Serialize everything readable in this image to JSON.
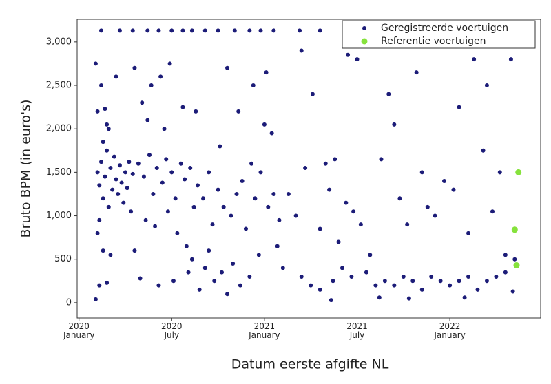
{
  "chart_data": {
    "type": "scatter",
    "xlabel": "Datum eerste afgifte NL",
    "ylabel": "Bruto BPM (in euro's)",
    "xlim": [
      2019.99,
      2022.49
    ],
    "ylim": [
      -175,
      3260
    ],
    "xticks": [
      {
        "value": 2020,
        "label": "2020\nJanuary"
      },
      {
        "value": 2020.5,
        "label": "2020\nJuly"
      },
      {
        "value": 2021,
        "label": "2021\nJanuary"
      },
      {
        "value": 2021.5,
        "label": "2021\nJuly"
      },
      {
        "value": 2022,
        "label": "2022\nJanuary"
      }
    ],
    "yticks": [
      0,
      500,
      {
        "value": 1000,
        "label": "1,000"
      },
      {
        "value": 1500,
        "label": "1,500"
      },
      {
        "value": 2000,
        "label": "2,000"
      },
      {
        "value": 2500,
        "label": "2,500"
      },
      {
        "value": 3000,
        "label": "3,000"
      }
    ],
    "grid": false,
    "legend": "upper right",
    "series": [
      {
        "name": "Geregistreerde voertuigen",
        "color": "#1c1c78",
        "x": [
          2020.1,
          2020.11,
          2020.12,
          2020.13,
          2020.14,
          2020.15,
          2020.16,
          2020.17,
          2020.18,
          2020.19,
          2020.2,
          2020.21,
          2020.22,
          2020.23,
          2020.24,
          2020.25,
          2020.26,
          2020.27,
          2020.28,
          2020.29,
          2020.11,
          2020.13,
          2020.15,
          2020.1,
          2020.12,
          2020.14,
          2020.09,
          2020.16,
          2020.2,
          2020.1,
          2020.13,
          2020.17,
          2020.11,
          2020.09,
          2020.15,
          2020.32,
          2020.35,
          2020.38,
          2020.4,
          2020.42,
          2020.45,
          2020.47,
          2020.5,
          2020.52,
          2020.55,
          2020.57,
          2020.6,
          2020.62,
          2020.64,
          2020.36,
          2020.41,
          2020.48,
          2020.53,
          2020.58,
          2020.61,
          2020.3,
          2020.34,
          2020.39,
          2020.44,
          2020.49,
          2020.37,
          2020.46,
          2020.56,
          2020.63,
          2020.33,
          2020.43,
          2020.51,
          2020.59,
          2020.3,
          2020.65,
          2020.67,
          2020.7,
          2020.72,
          2020.75,
          2020.78,
          2020.8,
          2020.82,
          2020.85,
          2020.88,
          2020.9,
          2020.93,
          2020.95,
          2020.98,
          2021.02,
          2021.05,
          2021.08,
          2020.68,
          2020.73,
          2020.77,
          2020.83,
          2020.87,
          2020.92,
          2020.97,
          2021,
          2021.01,
          2021.04,
          2020.76,
          2020.86,
          2020.94,
          2021.07,
          2021.1,
          2020.7,
          2020.8,
          2021.13,
          2021.17,
          2021.2,
          2021.22,
          2021.26,
          2021.3,
          2021.33,
          2021.35,
          2021.38,
          2021.4,
          2021.44,
          2021.48,
          2021.52,
          2021.57,
          2021.2,
          2021.25,
          2021.3,
          2021.37,
          2021.42,
          2021.47,
          2021.55,
          2021.6,
          2021.36,
          2021.5,
          2021.45,
          2021.63,
          2021.67,
          2021.7,
          2021.73,
          2021.77,
          2021.82,
          2021.85,
          2021.88,
          2021.92,
          2021.97,
          2022.02,
          2022.05,
          2022.1,
          2022.13,
          2022.18,
          2022.2,
          2022.23,
          2022.27,
          2022.3,
          2022.33,
          2022.35,
          2021.65,
          2021.7,
          2021.75,
          2021.8,
          2021.85,
          2021.9,
          2021.95,
          2022,
          2022.05,
          2022.1,
          2022.15,
          2022.2,
          2022.25,
          2022.3,
          2022.34,
          2021.78,
          2021.62,
          2022.08,
          2020.12,
          2020.22,
          2020.29,
          2020.37,
          2020.43,
          2020.5,
          2020.56,
          2020.61,
          2020.68,
          2020.75,
          2020.84,
          2020.92,
          2020.98,
          2021.05,
          2021.19,
          2021.3
        ],
        "values": [
          1500,
          1350,
          1620,
          1200,
          1450,
          1750,
          1100,
          1550,
          1300,
          1680,
          1420,
          1250,
          1580,
          1380,
          1150,
          1500,
          1320,
          1620,
          1050,
          1480,
          950,
          1850,
          2050,
          2200,
          2500,
          2230,
          2750,
          2000,
          2600,
          800,
          600,
          550,
          200,
          40,
          230,
          1600,
          1450,
          1700,
          1250,
          1550,
          1380,
          1650,
          1500,
          1200,
          1600,
          1420,
          1550,
          1100,
          1350,
          950,
          880,
          1050,
          800,
          650,
          500,
          2700,
          2300,
          2500,
          2600,
          2750,
          2100,
          2000,
          2250,
          2200,
          280,
          200,
          250,
          350,
          600,
          150,
          1200,
          1500,
          900,
          1300,
          1100,
          2700,
          1000,
          1250,
          1400,
          850,
          1600,
          1200,
          1500,
          1100,
          1250,
          950,
          400,
          250,
          350,
          450,
          200,
          300,
          550,
          2050,
          2650,
          1950,
          1800,
          2200,
          2500,
          650,
          400,
          600,
          100,
          1250,
          1000,
          2900,
          1550,
          2400,
          850,
          1600,
          1300,
          1650,
          700,
          1150,
          1050,
          900,
          550,
          300,
          200,
          150,
          250,
          400,
          300,
          350,
          200,
          30,
          2800,
          2850,
          1650,
          2400,
          2050,
          1200,
          900,
          2650,
          1500,
          1100,
          1000,
          1400,
          1300,
          2250,
          800,
          2800,
          1750,
          2500,
          1050,
          1500,
          550,
          2800,
          500,
          250,
          200,
          300,
          250,
          150,
          300,
          250,
          200,
          250,
          300,
          150,
          250,
          300,
          350,
          130,
          50,
          60,
          60,
          3130,
          3130,
          3130,
          3130,
          3130,
          3130,
          3130,
          3130,
          3130,
          3130,
          3130,
          3130,
          3130,
          3130,
          3130,
          3130
        ]
      },
      {
        "name": "Referentie voertuigen",
        "color": "#86e23c",
        "x": [
          2022.37,
          2022.35,
          2022.36
        ],
        "values": [
          1500,
          840,
          430
        ]
      }
    ]
  }
}
